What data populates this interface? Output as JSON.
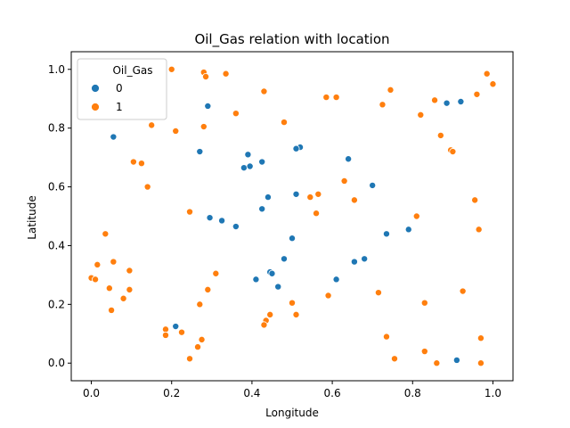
{
  "chart_data": {
    "type": "scatter",
    "title": "Oil_Gas relation with location",
    "xlabel": "Longitude",
    "ylabel": "Latitude",
    "xlim": [
      -0.05,
      1.05
    ],
    "ylim": [
      -0.06,
      1.06
    ],
    "xticks": [
      "0.0",
      "0.2",
      "0.4",
      "0.6",
      "0.8",
      "1.0"
    ],
    "yticks": [
      "0.0",
      "0.2",
      "0.4",
      "0.6",
      "0.8",
      "1.0"
    ],
    "grid": false,
    "legend": {
      "title": "Oil_Gas",
      "placement": "top-left"
    },
    "series": [
      {
        "name": "0",
        "color": "#1f77b4",
        "points": [
          [
            0.055,
            0.77
          ],
          [
            0.29,
            0.875
          ],
          [
            0.27,
            0.72
          ],
          [
            0.39,
            0.71
          ],
          [
            0.38,
            0.665
          ],
          [
            0.395,
            0.67
          ],
          [
            0.425,
            0.685
          ],
          [
            0.52,
            0.735
          ],
          [
            0.51,
            0.73
          ],
          [
            0.64,
            0.695
          ],
          [
            0.885,
            0.885
          ],
          [
            0.92,
            0.89
          ],
          [
            0.44,
            0.565
          ],
          [
            0.51,
            0.575
          ],
          [
            0.7,
            0.605
          ],
          [
            0.295,
            0.495
          ],
          [
            0.325,
            0.485
          ],
          [
            0.36,
            0.465
          ],
          [
            0.425,
            0.525
          ],
          [
            0.5,
            0.425
          ],
          [
            0.735,
            0.44
          ],
          [
            0.79,
            0.455
          ],
          [
            0.48,
            0.355
          ],
          [
            0.655,
            0.345
          ],
          [
            0.68,
            0.355
          ],
          [
            0.445,
            0.31
          ],
          [
            0.45,
            0.305
          ],
          [
            0.41,
            0.285
          ],
          [
            0.61,
            0.285
          ],
          [
            0.465,
            0.26
          ],
          [
            0.21,
            0.125
          ],
          [
            0.91,
            0.01
          ]
        ]
      },
      {
        "name": "1",
        "color": "#ff7f0e",
        "points": [
          [
            0.2,
            1.0
          ],
          [
            0.28,
            0.99
          ],
          [
            0.285,
            0.975
          ],
          [
            0.335,
            0.985
          ],
          [
            0.985,
            0.985
          ],
          [
            1.0,
            0.95
          ],
          [
            0.43,
            0.925
          ],
          [
            0.745,
            0.93
          ],
          [
            0.585,
            0.905
          ],
          [
            0.61,
            0.905
          ],
          [
            0.96,
            0.915
          ],
          [
            0.855,
            0.895
          ],
          [
            0.725,
            0.88
          ],
          [
            0.36,
            0.85
          ],
          [
            0.82,
            0.845
          ],
          [
            0.48,
            0.82
          ],
          [
            0.15,
            0.81
          ],
          [
            0.28,
            0.805
          ],
          [
            0.21,
            0.79
          ],
          [
            0.87,
            0.775
          ],
          [
            0.895,
            0.725
          ],
          [
            0.9,
            0.72
          ],
          [
            0.105,
            0.685
          ],
          [
            0.125,
            0.68
          ],
          [
            0.63,
            0.62
          ],
          [
            0.14,
            0.6
          ],
          [
            0.565,
            0.575
          ],
          [
            0.545,
            0.565
          ],
          [
            0.655,
            0.555
          ],
          [
            0.955,
            0.555
          ],
          [
            0.245,
            0.515
          ],
          [
            0.56,
            0.51
          ],
          [
            0.81,
            0.5
          ],
          [
            0.965,
            0.455
          ],
          [
            0.035,
            0.44
          ],
          [
            0.055,
            0.345
          ],
          [
            0.015,
            0.335
          ],
          [
            0.095,
            0.315
          ],
          [
            0.31,
            0.305
          ],
          [
            0.0,
            0.29
          ],
          [
            0.01,
            0.285
          ],
          [
            0.045,
            0.255
          ],
          [
            0.095,
            0.25
          ],
          [
            0.29,
            0.25
          ],
          [
            0.925,
            0.245
          ],
          [
            0.715,
            0.24
          ],
          [
            0.59,
            0.23
          ],
          [
            0.08,
            0.22
          ],
          [
            0.5,
            0.205
          ],
          [
            0.83,
            0.205
          ],
          [
            0.27,
            0.2
          ],
          [
            0.05,
            0.18
          ],
          [
            0.445,
            0.165
          ],
          [
            0.51,
            0.165
          ],
          [
            0.435,
            0.145
          ],
          [
            0.43,
            0.13
          ],
          [
            0.185,
            0.115
          ],
          [
            0.185,
            0.095
          ],
          [
            0.225,
            0.105
          ],
          [
            0.275,
            0.08
          ],
          [
            0.265,
            0.055
          ],
          [
            0.735,
            0.09
          ],
          [
            0.97,
            0.085
          ],
          [
            0.83,
            0.04
          ],
          [
            0.245,
            0.015
          ],
          [
            0.755,
            0.015
          ],
          [
            0.86,
            0.0
          ],
          [
            0.97,
            0.0
          ]
        ]
      }
    ]
  }
}
